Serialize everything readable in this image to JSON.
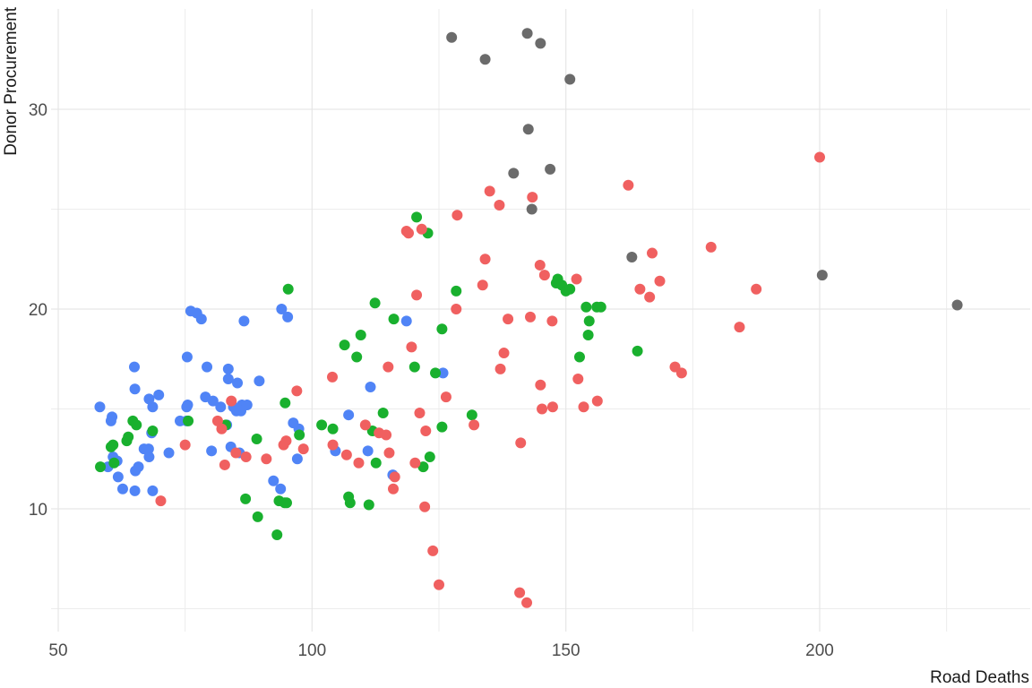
{
  "chart_data": {
    "type": "scatter",
    "title": "",
    "xlabel": "Road Deaths",
    "ylabel": "Donor Procurement",
    "xlim": [
      44.5,
      242.5
    ],
    "ylim": [
      4.2,
      35.0
    ],
    "x_ticks": [
      50,
      100,
      150,
      200
    ],
    "y_ticks": [
      10,
      20,
      30
    ],
    "x_minor_grid": [
      75,
      125,
      175,
      225
    ],
    "y_minor_grid": [
      5,
      15,
      25
    ],
    "grid": true,
    "legend": "none",
    "point_radius": 6,
    "series": [
      {
        "name": "blue",
        "color": "#5084F6",
        "points": [
          [
            58.2,
            15.1
          ],
          [
            60.6,
            14.6
          ],
          [
            60.4,
            14.4
          ],
          [
            59.8,
            12.1
          ],
          [
            60.8,
            12.6
          ],
          [
            61.6,
            12.4
          ],
          [
            61.8,
            11.6
          ],
          [
            62.7,
            11.0
          ],
          [
            65.2,
            11.9
          ],
          [
            65.8,
            12.1
          ],
          [
            65.1,
            10.9
          ],
          [
            65.0,
            17.1
          ],
          [
            65.1,
            16.0
          ],
          [
            66.9,
            13.0
          ],
          [
            67.8,
            13.0
          ],
          [
            67.9,
            12.6
          ],
          [
            67.9,
            15.5
          ],
          [
            68.4,
            13.8
          ],
          [
            68.6,
            15.1
          ],
          [
            68.6,
            10.9
          ],
          [
            69.8,
            15.7
          ],
          [
            71.8,
            12.8
          ],
          [
            74.0,
            14.4
          ],
          [
            75.3,
            15.1
          ],
          [
            75.5,
            15.2
          ],
          [
            75.3,
            14.4
          ],
          [
            75.4,
            17.6
          ],
          [
            76.1,
            19.9
          ],
          [
            77.3,
            19.8
          ],
          [
            78.2,
            19.5
          ],
          [
            79.0,
            15.6
          ],
          [
            79.3,
            17.1
          ],
          [
            80.2,
            12.9
          ],
          [
            80.5,
            15.4
          ],
          [
            82.0,
            15.1
          ],
          [
            83.2,
            14.2
          ],
          [
            83.5,
            17.0
          ],
          [
            83.5,
            16.5
          ],
          [
            84.0,
            13.1
          ],
          [
            84.5,
            15.1
          ],
          [
            85.1,
            14.9
          ],
          [
            85.3,
            16.3
          ],
          [
            85.7,
            12.8
          ],
          [
            86.2,
            15.2
          ],
          [
            86.0,
            14.9
          ],
          [
            86.6,
            19.4
          ],
          [
            87.2,
            15.2
          ],
          [
            89.6,
            16.4
          ],
          [
            92.4,
            11.4
          ],
          [
            93.8,
            11.0
          ],
          [
            94.0,
            20.0
          ],
          [
            95.2,
            19.6
          ],
          [
            96.3,
            14.3
          ],
          [
            97.1,
            12.5
          ],
          [
            97.4,
            14.0
          ],
          [
            104.6,
            12.9
          ],
          [
            107.2,
            14.7
          ],
          [
            111.0,
            12.9
          ],
          [
            111.5,
            16.1
          ],
          [
            115.9,
            11.7
          ],
          [
            118.6,
            19.4
          ],
          [
            125.8,
            16.8
          ]
        ]
      },
      {
        "name": "green",
        "color": "#19B02E",
        "points": [
          [
            58.3,
            12.1
          ],
          [
            60.4,
            13.1
          ],
          [
            60.8,
            13.2
          ],
          [
            61.0,
            12.3
          ],
          [
            63.5,
            13.4
          ],
          [
            63.8,
            13.6
          ],
          [
            64.7,
            14.4
          ],
          [
            65.4,
            14.2
          ],
          [
            68.6,
            13.9
          ],
          [
            75.6,
            14.4
          ],
          [
            83.0,
            14.2
          ],
          [
            86.9,
            10.5
          ],
          [
            89.1,
            13.5
          ],
          [
            89.3,
            9.6
          ],
          [
            93.1,
            8.7
          ],
          [
            93.5,
            10.4
          ],
          [
            94.6,
            10.3
          ],
          [
            95.0,
            10.3
          ],
          [
            94.7,
            15.3
          ],
          [
            95.3,
            21.0
          ],
          [
            97.5,
            13.7
          ],
          [
            101.9,
            14.2
          ],
          [
            104.1,
            14.0
          ],
          [
            106.4,
            18.2
          ],
          [
            107.2,
            10.6
          ],
          [
            107.5,
            10.3
          ],
          [
            108.8,
            17.6
          ],
          [
            109.6,
            18.7
          ],
          [
            111.2,
            10.2
          ],
          [
            111.9,
            13.9
          ],
          [
            112.4,
            20.3
          ],
          [
            112.6,
            12.3
          ],
          [
            114.0,
            14.8
          ],
          [
            116.1,
            19.5
          ],
          [
            120.2,
            17.1
          ],
          [
            120.6,
            24.6
          ],
          [
            121.9,
            12.1
          ],
          [
            122.8,
            23.8
          ],
          [
            123.2,
            12.6
          ],
          [
            124.3,
            16.8
          ],
          [
            125.6,
            14.1
          ],
          [
            125.6,
            19.0
          ],
          [
            128.4,
            20.9
          ],
          [
            131.5,
            14.7
          ],
          [
            148.1,
            21.3
          ],
          [
            148.4,
            21.5
          ],
          [
            149.2,
            21.2
          ],
          [
            150.0,
            20.9
          ],
          [
            150.8,
            21.0
          ],
          [
            154.0,
            20.1
          ],
          [
            154.4,
            18.7
          ],
          [
            154.6,
            19.4
          ],
          [
            152.7,
            17.6
          ],
          [
            156.1,
            20.1
          ],
          [
            156.9,
            20.1
          ],
          [
            164.1,
            17.9
          ]
        ]
      },
      {
        "name": "red",
        "color": "#F06060",
        "points": [
          [
            70.2,
            10.4
          ],
          [
            75.0,
            13.2
          ],
          [
            81.4,
            14.4
          ],
          [
            82.2,
            14.0
          ],
          [
            82.8,
            12.2
          ],
          [
            84.1,
            15.4
          ],
          [
            85.0,
            12.8
          ],
          [
            87.0,
            12.6
          ],
          [
            91.0,
            12.5
          ],
          [
            94.4,
            13.2
          ],
          [
            94.9,
            13.4
          ],
          [
            97.0,
            15.9
          ],
          [
            98.3,
            13.0
          ],
          [
            104.0,
            16.6
          ],
          [
            104.1,
            13.2
          ],
          [
            106.8,
            12.7
          ],
          [
            109.2,
            12.3
          ],
          [
            110.5,
            14.2
          ],
          [
            113.2,
            13.8
          ],
          [
            115.0,
            17.1
          ],
          [
            114.6,
            13.7
          ],
          [
            115.2,
            12.8
          ],
          [
            116.0,
            11.0
          ],
          [
            116.3,
            11.6
          ],
          [
            119.0,
            23.8
          ],
          [
            118.6,
            23.9
          ],
          [
            119.6,
            18.1
          ],
          [
            120.3,
            12.3
          ],
          [
            120.6,
            20.7
          ],
          [
            121.2,
            14.8
          ],
          [
            121.6,
            24.0
          ],
          [
            122.2,
            10.1
          ],
          [
            122.4,
            13.9
          ],
          [
            123.8,
            7.9
          ],
          [
            125.0,
            6.2
          ],
          [
            126.4,
            15.6
          ],
          [
            128.6,
            24.7
          ],
          [
            128.4,
            20.0
          ],
          [
            131.9,
            14.2
          ],
          [
            133.6,
            21.2
          ],
          [
            134.1,
            22.5
          ],
          [
            135.0,
            25.9
          ],
          [
            136.9,
            25.2
          ],
          [
            137.1,
            17.0
          ],
          [
            137.8,
            17.8
          ],
          [
            138.6,
            19.5
          ],
          [
            141.1,
            13.3
          ],
          [
            140.9,
            5.8
          ],
          [
            142.3,
            5.3
          ],
          [
            143.0,
            19.6
          ],
          [
            143.4,
            25.6
          ],
          [
            144.9,
            22.2
          ],
          [
            145.0,
            16.2
          ],
          [
            145.3,
            15.0
          ],
          [
            145.8,
            21.7
          ],
          [
            147.3,
            19.4
          ],
          [
            147.4,
            15.1
          ],
          [
            152.1,
            21.5
          ],
          [
            152.4,
            16.5
          ],
          [
            153.5,
            15.1
          ],
          [
            156.2,
            15.4
          ],
          [
            162.3,
            26.2
          ],
          [
            164.6,
            21.0
          ],
          [
            166.5,
            20.6
          ],
          [
            167.0,
            22.8
          ],
          [
            168.5,
            21.4
          ],
          [
            171.5,
            17.1
          ],
          [
            172.8,
            16.8
          ],
          [
            178.6,
            23.1
          ],
          [
            184.2,
            19.1
          ],
          [
            187.5,
            21.0
          ],
          [
            200.0,
            27.6
          ]
        ]
      },
      {
        "name": "gray",
        "color": "#6B6B6B",
        "points": [
          [
            127.5,
            33.6
          ],
          [
            134.1,
            32.5
          ],
          [
            142.4,
            33.8
          ],
          [
            145.0,
            33.3
          ],
          [
            150.8,
            31.5
          ],
          [
            142.6,
            29.0
          ],
          [
            139.7,
            26.8
          ],
          [
            146.9,
            27.0
          ],
          [
            143.3,
            25.0
          ],
          [
            163.0,
            22.6
          ],
          [
            200.5,
            21.7
          ],
          [
            227.1,
            20.2
          ]
        ]
      }
    ]
  }
}
